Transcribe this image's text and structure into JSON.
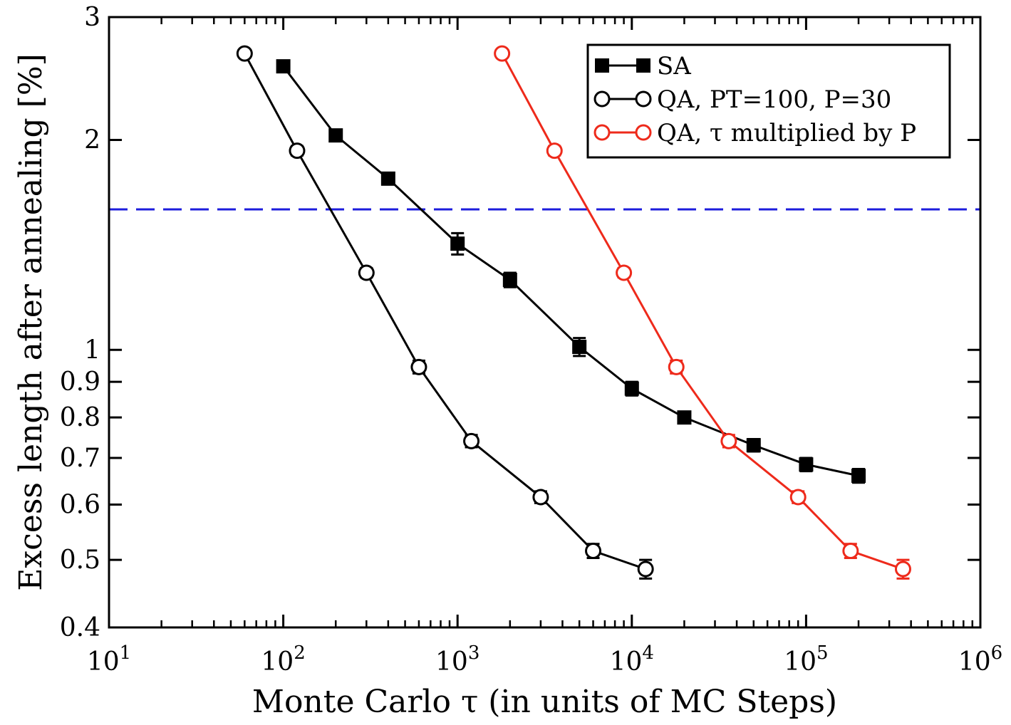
{
  "chart_data": {
    "type": "line",
    "xlabel": "Monte Carlo τ (in units of MC Steps)",
    "ylabel": "Excess length after annealing [%]",
    "x_scale": "log",
    "y_scale": "log",
    "xlim": [
      10,
      1000000
    ],
    "ylim": [
      0.4,
      3
    ],
    "grid": false,
    "legend_position": "top-right",
    "x_ticks": [
      {
        "value": 10,
        "base": "10",
        "exp": "1"
      },
      {
        "value": 100,
        "base": "10",
        "exp": "2"
      },
      {
        "value": 1000,
        "base": "10",
        "exp": "3"
      },
      {
        "value": 10000,
        "base": "10",
        "exp": "4"
      },
      {
        "value": 100000,
        "base": "10",
        "exp": "5"
      },
      {
        "value": 1000000,
        "base": "10",
        "exp": "6"
      }
    ],
    "y_ticks": [
      {
        "value": 0.4,
        "label": "0.4"
      },
      {
        "value": 0.5,
        "label": "0.5"
      },
      {
        "value": 0.6,
        "label": "0.6"
      },
      {
        "value": 0.7,
        "label": "0.7"
      },
      {
        "value": 0.8,
        "label": "0.8"
      },
      {
        "value": 0.9,
        "label": "0.9"
      },
      {
        "value": 1,
        "label": "1"
      },
      {
        "value": 2,
        "label": "2"
      },
      {
        "value": 3,
        "label": "3"
      }
    ],
    "reference_line": {
      "y": 1.59,
      "color": "#1c1cdc",
      "style": "dashed"
    },
    "series": [
      {
        "name": "SA",
        "color": "#000000",
        "marker": "filled-square",
        "points": [
          {
            "x": 100,
            "y": 2.55,
            "err": 0.03
          },
          {
            "x": 200,
            "y": 2.03,
            "err": 0.03
          },
          {
            "x": 400,
            "y": 1.76,
            "err": 0.03
          },
          {
            "x": 1000,
            "y": 1.42,
            "err": 0.05
          },
          {
            "x": 2000,
            "y": 1.26,
            "err": 0.03
          },
          {
            "x": 5000,
            "y": 1.01,
            "err": 0.03
          },
          {
            "x": 10000,
            "y": 0.88,
            "err": 0.02
          },
          {
            "x": 20000,
            "y": 0.8,
            "err": 0.01
          },
          {
            "x": 50000,
            "y": 0.73,
            "err": 0.015
          },
          {
            "x": 100000,
            "y": 0.685,
            "err": 0.015
          },
          {
            "x": 200000,
            "y": 0.66,
            "err": 0.015
          }
        ]
      },
      {
        "name": "QA, PT=100, P=30",
        "color": "#000000",
        "marker": "open-circle",
        "points": [
          {
            "x": 60,
            "y": 2.66,
            "err": 0.02
          },
          {
            "x": 120,
            "y": 1.93,
            "err": 0.03
          },
          {
            "x": 300,
            "y": 1.29,
            "err": 0.02
          },
          {
            "x": 600,
            "y": 0.945,
            "err": 0.02
          },
          {
            "x": 1200,
            "y": 0.74,
            "err": 0.015
          },
          {
            "x": 3000,
            "y": 0.615,
            "err": 0.012
          },
          {
            "x": 6000,
            "y": 0.515,
            "err": 0.012
          },
          {
            "x": 12000,
            "y": 0.485,
            "err": 0.015
          }
        ]
      },
      {
        "name": "QA, τ multiplied by P",
        "color": "#ee2a1b",
        "marker": "open-circle",
        "points": [
          {
            "x": 1800,
            "y": 2.66,
            "err": 0.02
          },
          {
            "x": 3600,
            "y": 1.93,
            "err": 0.03
          },
          {
            "x": 9000,
            "y": 1.29,
            "err": 0.02
          },
          {
            "x": 18000,
            "y": 0.945,
            "err": 0.02
          },
          {
            "x": 36000,
            "y": 0.74,
            "err": 0.015
          },
          {
            "x": 90000,
            "y": 0.615,
            "err": 0.012
          },
          {
            "x": 180000,
            "y": 0.515,
            "err": 0.012
          },
          {
            "x": 360000,
            "y": 0.485,
            "err": 0.015
          }
        ]
      }
    ]
  }
}
